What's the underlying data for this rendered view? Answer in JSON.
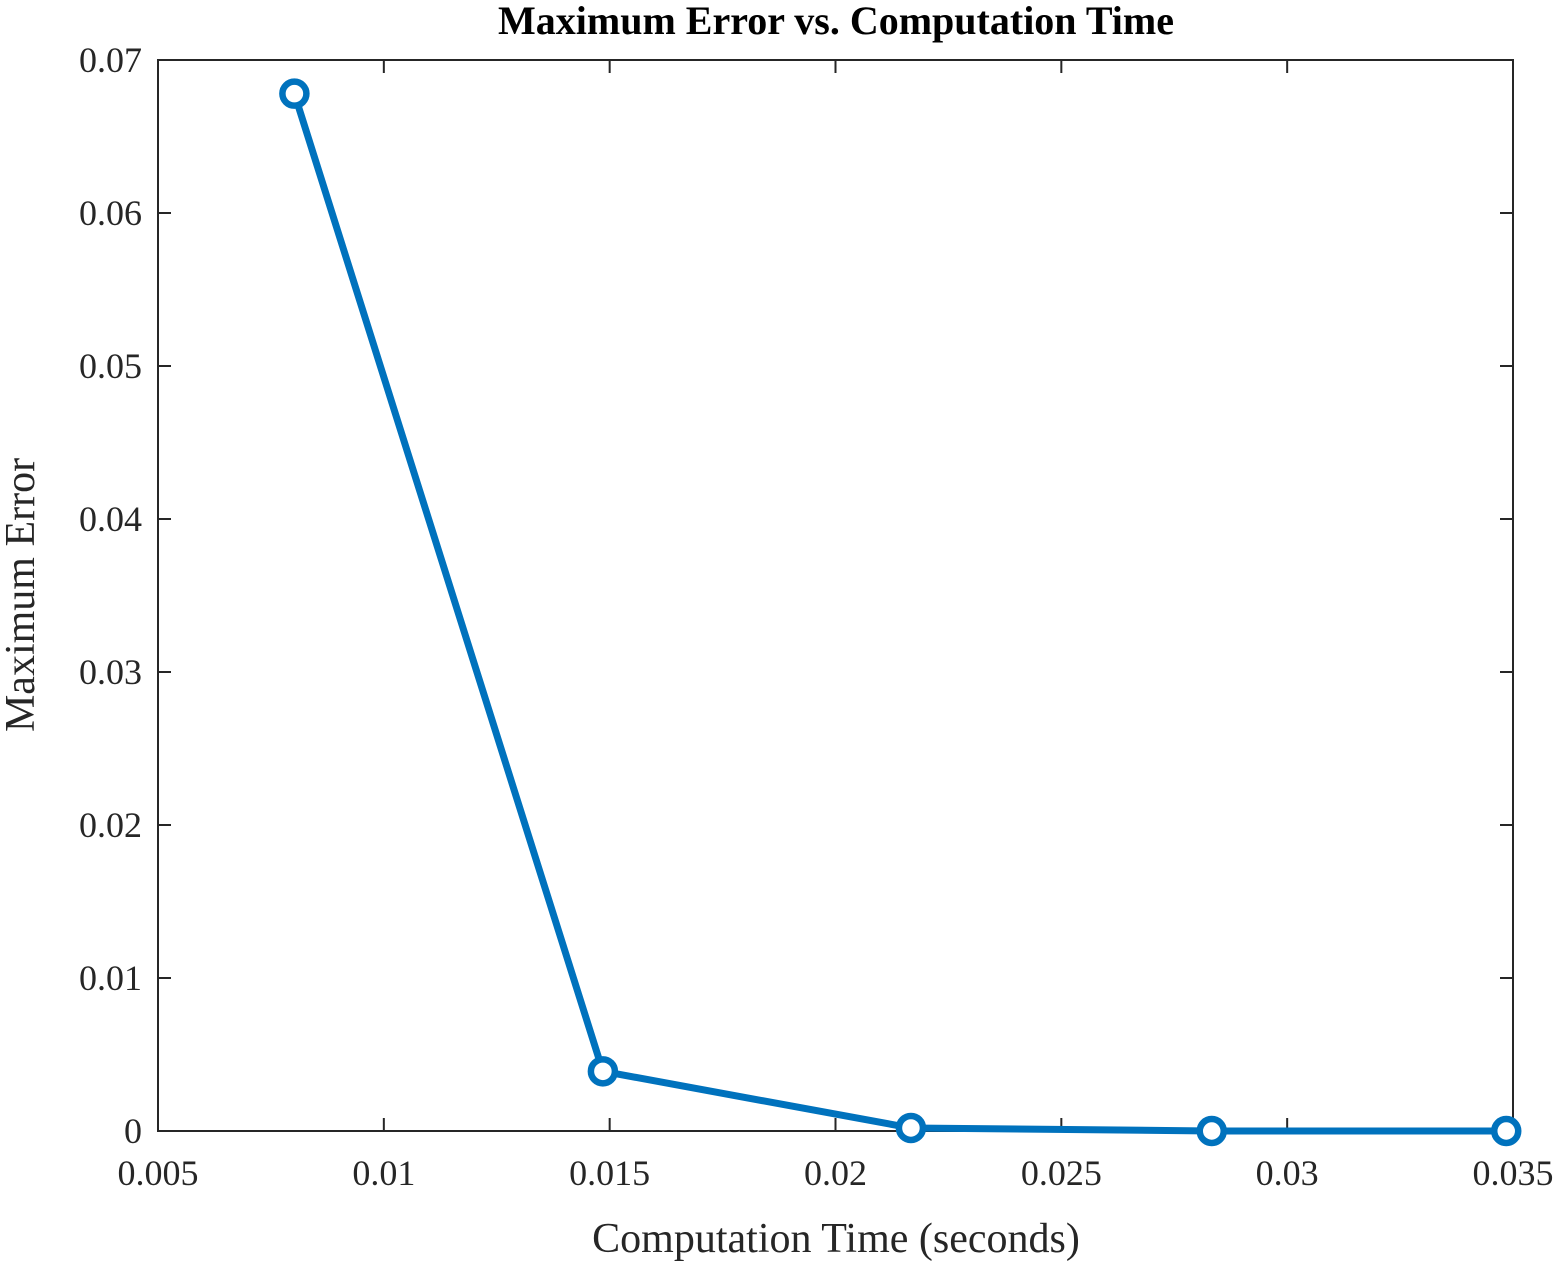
{
  "chart_data": {
    "type": "line",
    "title": "Maximum Error vs. Computation Time",
    "xlabel": "Computation Time (seconds)",
    "ylabel": "Maximum Error",
    "xlim": [
      0.005,
      0.035
    ],
    "ylim": [
      0,
      0.07
    ],
    "x_ticks": [
      "0.005",
      "0.01",
      "0.015",
      "0.02",
      "0.025",
      "0.03",
      "0.035"
    ],
    "y_ticks": [
      "0",
      "0.01",
      "0.02",
      "0.03",
      "0.04",
      "0.05",
      "0.06",
      "0.07"
    ],
    "grid": false,
    "series": [
      {
        "color": "#0072BD",
        "marker": "circle",
        "x": [
          0.00802,
          0.01485,
          0.02167,
          0.02833,
          0.03485
        ],
        "y": [
          0.0678,
          0.0039,
          0.0002,
          0.0,
          0.0
        ]
      }
    ],
    "colors": {
      "axis": "#262626",
      "title": "#000000",
      "background": "#ffffff"
    }
  }
}
